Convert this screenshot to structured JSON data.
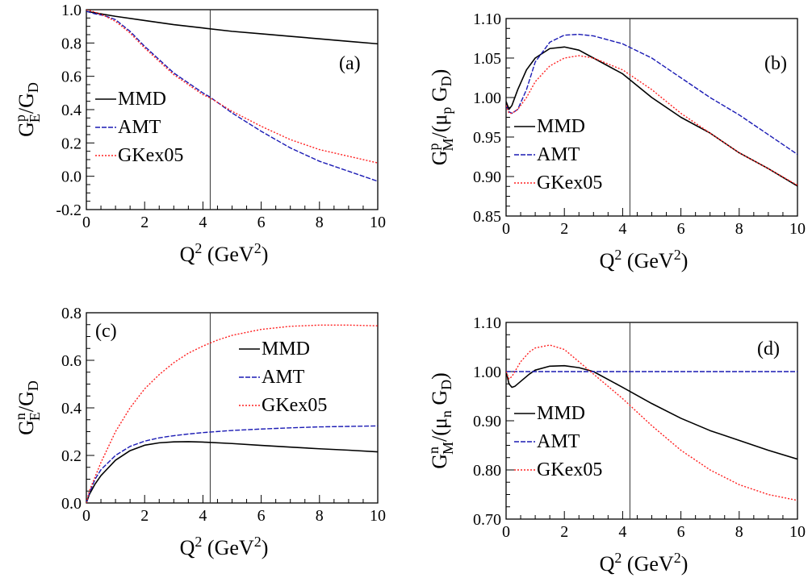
{
  "chart_data": [
    {
      "type": "line",
      "panel_label": "(a)",
      "ylabel": {
        "main": "G",
        "sup": "p",
        "sub": "E",
        "rest": "/G",
        "rest_sub": "D"
      },
      "xlabel": {
        "main": "Q",
        "sup": "2",
        "rest": " (GeV",
        "rest_sup": "2",
        "end": ")"
      },
      "xlim": [
        0,
        10
      ],
      "ylim": [
        -0.2,
        1.0
      ],
      "xticks": [
        0,
        2,
        4,
        6,
        8,
        10
      ],
      "xtick_labels": [
        "0",
        "2",
        "4",
        "6",
        "8",
        "10"
      ],
      "yticks": [
        -0.2,
        0,
        0.2,
        0.4,
        0.6,
        0.8,
        1.0
      ],
      "ytick_labels": [
        "-0.2",
        "0.0",
        "0.2",
        "0.4",
        "0.6",
        "0.8",
        "1.0"
      ],
      "vline_x": 4.25,
      "legend": [
        "MMD",
        "AMT",
        "GKex05"
      ],
      "legend_position": "left-middle",
      "series": [
        {
          "name": "MMD",
          "color": "#000000",
          "style": "solid",
          "x": [
            0,
            0.5,
            1,
            2,
            3,
            4,
            5,
            6,
            7,
            8,
            9,
            10
          ],
          "y": [
            0.99,
            0.975,
            0.96,
            0.935,
            0.91,
            0.89,
            0.87,
            0.855,
            0.84,
            0.825,
            0.81,
            0.795
          ]
        },
        {
          "name": "AMT",
          "color": "#1a1ab4",
          "style": "dashed",
          "x": [
            0,
            0.3,
            0.6,
            1,
            1.5,
            2,
            3,
            4,
            4.25,
            5,
            6,
            7,
            8,
            9,
            10
          ],
          "y": [
            0.99,
            0.975,
            0.965,
            0.94,
            0.87,
            0.78,
            0.62,
            0.5,
            0.475,
            0.38,
            0.27,
            0.17,
            0.09,
            0.03,
            -0.03
          ]
        },
        {
          "name": "GKex05",
          "color": "#ff2020",
          "style": "dotted",
          "x": [
            0,
            0.3,
            0.6,
            1,
            1.5,
            2,
            3,
            4,
            4.25,
            5,
            6,
            7,
            8,
            9,
            10
          ],
          "y": [
            1.0,
            0.985,
            0.965,
            0.93,
            0.86,
            0.77,
            0.61,
            0.49,
            0.47,
            0.39,
            0.3,
            0.22,
            0.16,
            0.12,
            0.08
          ]
        }
      ]
    },
    {
      "type": "line",
      "panel_label": "(b)",
      "ylabel": {
        "main": "G",
        "sup": "p",
        "sub": "M",
        "rest": "/(μ",
        "rest_sub": "p",
        "end": " G",
        "end_sub": "D",
        "close": ")"
      },
      "xlabel": {
        "main": "Q",
        "sup": "2",
        "rest": " (GeV",
        "rest_sup": "2",
        "end": ")"
      },
      "xlim": [
        0,
        10
      ],
      "ylim": [
        0.85,
        1.1
      ],
      "xticks": [
        0,
        2,
        4,
        6,
        8,
        10
      ],
      "xtick_labels": [
        "0",
        "2",
        "4",
        "6",
        "8",
        "10"
      ],
      "yticks": [
        0.85,
        0.9,
        0.95,
        1.0,
        1.05,
        1.1
      ],
      "ytick_labels": [
        "0.85",
        "0.90",
        "0.95",
        "1.00",
        "1.05",
        "1.10"
      ],
      "vline_x": 4.25,
      "legend": [
        "MMD",
        "AMT",
        "GKex05"
      ],
      "legend_position": "bottom-left",
      "series": [
        {
          "name": "MMD",
          "color": "#000000",
          "style": "solid",
          "x": [
            0,
            0.1,
            0.2,
            0.4,
            0.7,
            1,
            1.5,
            2,
            2.5,
            3,
            4,
            5,
            6,
            7,
            8,
            9,
            10
          ],
          "y": [
            0.995,
            0.985,
            0.99,
            1.01,
            1.035,
            1.05,
            1.062,
            1.064,
            1.06,
            1.05,
            1.03,
            1.0,
            0.975,
            0.955,
            0.93,
            0.91,
            0.888
          ]
        },
        {
          "name": "AMT",
          "color": "#1a1ab4",
          "style": "dashed",
          "x": [
            0,
            0.1,
            0.2,
            0.4,
            0.7,
            1,
            1.5,
            2,
            2.5,
            3,
            4,
            5,
            6,
            7,
            8,
            9,
            10
          ],
          "y": [
            0.99,
            0.982,
            0.98,
            0.985,
            1.01,
            1.045,
            1.07,
            1.079,
            1.08,
            1.078,
            1.068,
            1.05,
            1.025,
            1.0,
            0.978,
            0.953,
            0.928
          ]
        },
        {
          "name": "GKex05",
          "color": "#ff2020",
          "style": "dotted",
          "x": [
            0,
            0.1,
            0.2,
            0.4,
            0.7,
            1,
            1.5,
            2,
            2.5,
            3,
            4,
            5,
            6,
            7,
            8,
            9,
            10
          ],
          "y": [
            0.99,
            0.98,
            0.98,
            0.985,
            1.0,
            1.02,
            1.04,
            1.05,
            1.053,
            1.05,
            1.035,
            1.01,
            0.98,
            0.955,
            0.93,
            0.91,
            0.889
          ]
        }
      ]
    },
    {
      "type": "line",
      "panel_label": "(c)",
      "ylabel": {
        "main": "G",
        "sup": "n",
        "sub": "E",
        "rest": "/G",
        "rest_sub": "D"
      },
      "xlabel": {
        "main": "Q",
        "sup": "2",
        "rest": " (GeV",
        "rest_sup": "2",
        "end": ")"
      },
      "xlim": [
        0,
        10
      ],
      "ylim": [
        0,
        0.8
      ],
      "xticks": [
        0,
        2,
        4,
        6,
        8,
        10
      ],
      "xtick_labels": [
        "0",
        "2",
        "4",
        "6",
        "8",
        "10"
      ],
      "yticks": [
        0,
        0.2,
        0.4,
        0.6,
        0.8
      ],
      "ytick_labels": [
        "0.0",
        "0.2",
        "0.4",
        "0.6",
        "0.8"
      ],
      "vline_x": 4.25,
      "legend": [
        "MMD",
        "AMT",
        "GKex05"
      ],
      "legend_position": "right-middle",
      "series": [
        {
          "name": "MMD",
          "color": "#000000",
          "style": "solid",
          "x": [
            0,
            0.1,
            0.3,
            0.5,
            1,
            1.5,
            2,
            2.5,
            3,
            3.5,
            4,
            5,
            6,
            7,
            8,
            9,
            10
          ],
          "y": [
            0,
            0.035,
            0.08,
            0.115,
            0.18,
            0.22,
            0.243,
            0.253,
            0.257,
            0.258,
            0.256,
            0.25,
            0.242,
            0.235,
            0.228,
            0.222,
            0.215
          ]
        },
        {
          "name": "AMT",
          "color": "#1a1ab4",
          "style": "dashed",
          "x": [
            0,
            0.1,
            0.3,
            0.5,
            1,
            1.5,
            2,
            2.5,
            3,
            3.5,
            4,
            5,
            6,
            7,
            8,
            9,
            10
          ],
          "y": [
            0,
            0.04,
            0.1,
            0.14,
            0.2,
            0.238,
            0.26,
            0.274,
            0.283,
            0.29,
            0.296,
            0.305,
            0.311,
            0.316,
            0.32,
            0.322,
            0.324
          ]
        },
        {
          "name": "GKex05",
          "color": "#ff2020",
          "style": "dotted",
          "x": [
            0,
            0.1,
            0.3,
            0.5,
            1,
            1.5,
            2,
            2.5,
            3,
            3.5,
            4,
            4.5,
            5,
            6,
            7,
            8,
            9,
            10
          ],
          "y": [
            0,
            0.05,
            0.11,
            0.17,
            0.3,
            0.4,
            0.48,
            0.54,
            0.59,
            0.63,
            0.66,
            0.685,
            0.705,
            0.73,
            0.743,
            0.748,
            0.748,
            0.745
          ]
        }
      ]
    },
    {
      "type": "line",
      "panel_label": "(d)",
      "ylabel": {
        "main": "G",
        "sup": "n",
        "sub": "M",
        "rest": "/(μ",
        "rest_sub": "n",
        "end": " G",
        "end_sub": "D",
        "close": ")"
      },
      "xlabel": {
        "main": "Q",
        "sup": "2",
        "rest": " (GeV",
        "rest_sup": "2",
        "end": ")"
      },
      "xlim": [
        0,
        10
      ],
      "ylim": [
        0.7,
        1.1
      ],
      "xticks": [
        0,
        2,
        4,
        6,
        8,
        10
      ],
      "xtick_labels": [
        "0",
        "2",
        "4",
        "6",
        "8",
        "10"
      ],
      "yticks": [
        0.7,
        0.8,
        0.9,
        1.0,
        1.1
      ],
      "ytick_labels": [
        "0.70",
        "0.80",
        "0.90",
        "1.00",
        "1.10"
      ],
      "vline_x": 4.25,
      "legend": [
        "MMD",
        "AMT",
        "GKex05"
      ],
      "legend_position": "left-middle",
      "series": [
        {
          "name": "MMD",
          "color": "#000000",
          "style": "solid",
          "x": [
            0,
            0.1,
            0.2,
            0.3,
            0.5,
            0.8,
            1,
            1.5,
            2,
            2.5,
            3,
            4,
            5,
            6,
            7,
            8,
            9,
            10
          ],
          "y": [
            1.0,
            0.975,
            0.968,
            0.97,
            0.98,
            0.995,
            1.003,
            1.011,
            1.012,
            1.008,
            1.0,
            0.968,
            0.935,
            0.905,
            0.88,
            0.86,
            0.84,
            0.822
          ]
        },
        {
          "name": "AMT",
          "color": "#1a1ab4",
          "style": "dashed",
          "x": [
            0,
            10
          ],
          "y": [
            1.0,
            1.0
          ]
        },
        {
          "name": "GKex05",
          "color": "#ff2020",
          "style": "dotted",
          "x": [
            0,
            0.1,
            0.2,
            0.3,
            0.5,
            0.8,
            1,
            1.5,
            2,
            2.5,
            3,
            4,
            5,
            6,
            7,
            8,
            9,
            10
          ],
          "y": [
            1.0,
            0.985,
            0.99,
            1.0,
            1.02,
            1.04,
            1.048,
            1.054,
            1.045,
            1.02,
            0.995,
            0.945,
            0.89,
            0.84,
            0.8,
            0.77,
            0.75,
            0.738
          ]
        }
      ]
    }
  ]
}
